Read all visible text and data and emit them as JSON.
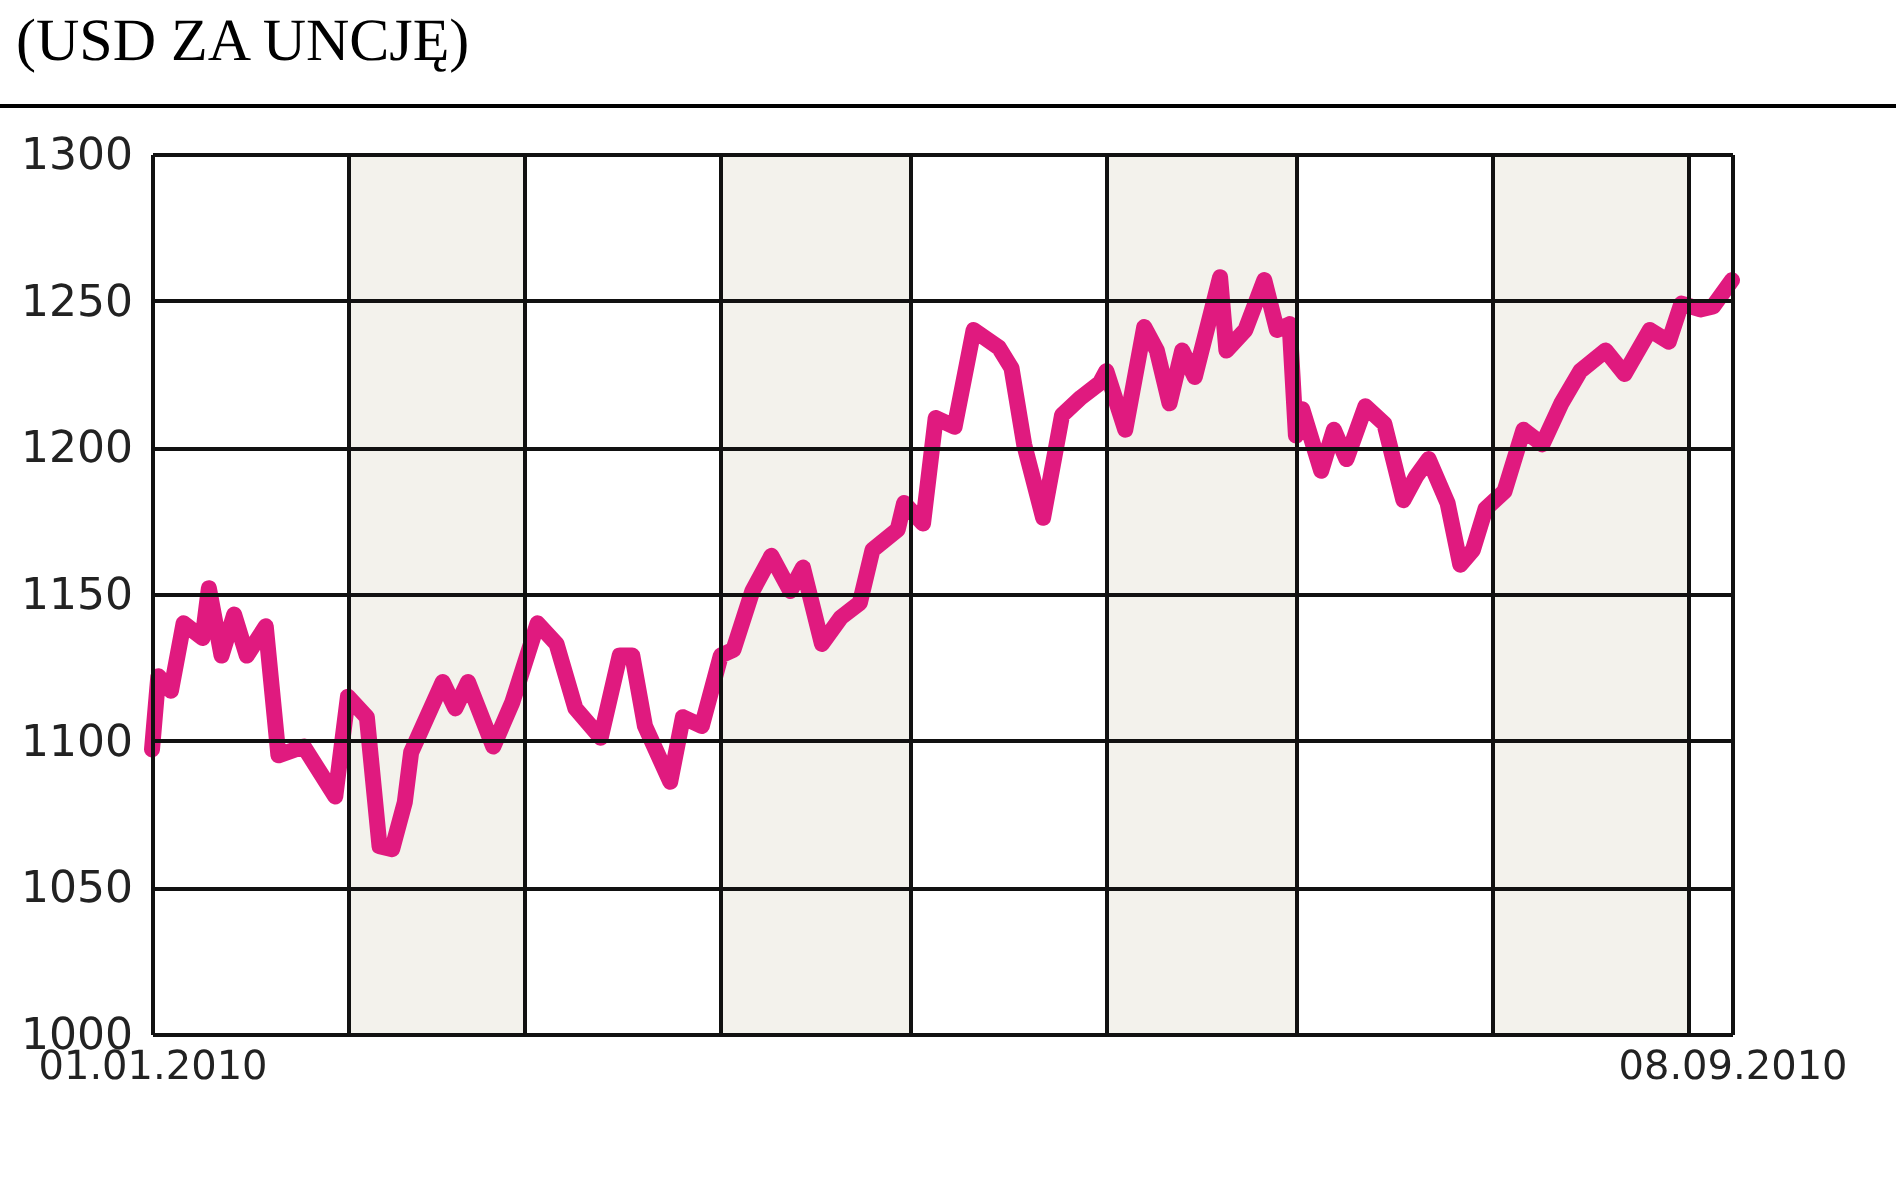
{
  "chart_data": {
    "type": "line",
    "title": "(USD ZA UNCJĘ)",
    "color": "#e01a7f",
    "line_style": "solid",
    "grid": true,
    "x": [
      "2010-01-01",
      "2010-01-02",
      "2010-01-04",
      "2010-01-06",
      "2010-01-09",
      "2010-01-10",
      "2010-01-12",
      "2010-01-14",
      "2010-01-16",
      "2010-01-19",
      "2010-01-21",
      "2010-01-25",
      "2010-01-30",
      "2010-02-01",
      "2010-02-04",
      "2010-02-06",
      "2010-02-08",
      "2010-02-10",
      "2010-02-11",
      "2010-02-16",
      "2010-02-18",
      "2010-02-20",
      "2010-02-24",
      "2010-02-27",
      "2010-03-03",
      "2010-03-06",
      "2010-03-09",
      "2010-03-13",
      "2010-03-16",
      "2010-03-18",
      "2010-03-20",
      "2010-03-24",
      "2010-03-26",
      "2010-03-29",
      "2010-04-01",
      "2010-04-03",
      "2010-04-06",
      "2010-04-09",
      "2010-04-12",
      "2010-04-14",
      "2010-04-17",
      "2010-04-20",
      "2010-04-23",
      "2010-04-25",
      "2010-04-29",
      "2010-04-30",
      "2010-05-03",
      "2010-05-05",
      "2010-05-08",
      "2010-05-11",
      "2010-05-15",
      "2010-05-17",
      "2010-05-19",
      "2010-05-22",
      "2010-05-25",
      "2010-05-28",
      "2010-05-31",
      "2010-06-01",
      "2010-06-04",
      "2010-06-07",
      "2010-06-09",
      "2010-06-11",
      "2010-06-13",
      "2010-06-15",
      "2010-06-19",
      "2010-06-20",
      "2010-06-23",
      "2010-06-26",
      "2010-06-28",
      "2010-06-30",
      "2010-07-01",
      "2010-07-02",
      "2010-07-05",
      "2010-07-07",
      "2010-07-09",
      "2010-07-12",
      "2010-07-15",
      "2010-07-18",
      "2010-07-20",
      "2010-07-22",
      "2010-07-25",
      "2010-07-27",
      "2010-07-29",
      "2010-07-31",
      "2010-08-03",
      "2010-08-06",
      "2010-08-09",
      "2010-08-12",
      "2010-08-15",
      "2010-08-19",
      "2010-08-22",
      "2010-08-26",
      "2010-08-29",
      "2010-08-31",
      "2010-09-03",
      "2010-09-05",
      "2010-09-08"
    ],
    "values": [
      1097,
      1122,
      1117,
      1140,
      1135,
      1152,
      1129,
      1143,
      1129,
      1139,
      1095,
      1098,
      1081,
      1115,
      1108,
      1064,
      1063,
      1079,
      1096,
      1120,
      1111,
      1120,
      1098,
      1113,
      1140,
      1133,
      1111,
      1101,
      1129,
      1129,
      1105,
      1086,
      1108,
      1105,
      1129,
      1131,
      1151,
      1163,
      1151,
      1159,
      1133,
      1142,
      1147,
      1165,
      1172,
      1181,
      1174,
      1210,
      1207,
      1240,
      1234,
      1227,
      1201,
      1176,
      1211,
      1217,
      1222,
      1226,
      1206,
      1241,
      1233,
      1215,
      1233,
      1224,
      1258,
      1233,
      1240,
      1257,
      1240,
      1242,
      1204,
      1213,
      1192,
      1206,
      1196,
      1214,
      1208,
      1182,
      1190,
      1196,
      1181,
      1160,
      1165,
      1179,
      1185,
      1206,
      1201,
      1215,
      1226,
      1233,
      1225,
      1240,
      1236,
      1249,
      1247,
      1248,
      1257
    ],
    "xlim": [
      "2010-01-01",
      "2010-09-08"
    ],
    "xticks": [
      {
        "value": "2010-01-01",
        "label": "01.01.2010"
      },
      {
        "value": "2010-02-01",
        "label": null
      },
      {
        "value": "2010-03-01",
        "label": null
      },
      {
        "value": "2010-04-01",
        "label": null
      },
      {
        "value": "2010-05-01",
        "label": null
      },
      {
        "value": "2010-06-01",
        "label": null
      },
      {
        "value": "2010-07-01",
        "label": null
      },
      {
        "value": "2010-08-01",
        "label": null
      },
      {
        "value": "2010-09-01",
        "label": null
      },
      {
        "value": "2010-09-08",
        "label": "08.09.2010"
      }
    ],
    "ylim": [
      1000,
      1300
    ],
    "yticks": [
      1000,
      1050,
      1100,
      1150,
      1200,
      1250,
      1300
    ],
    "bands": [
      {
        "axis": "x",
        "from": "2010-02-01",
        "to": "2010-03-01",
        "color": "#f3f2ec"
      },
      {
        "axis": "x",
        "from": "2010-04-01",
        "to": "2010-05-01",
        "color": "#f3f2ec"
      },
      {
        "axis": "x",
        "from": "2010-06-01",
        "to": "2010-07-01",
        "color": "#f3f2ec"
      },
      {
        "axis": "x",
        "from": "2010-08-01",
        "to": "2010-09-01",
        "color": "#f3f2ec"
      }
    ]
  }
}
